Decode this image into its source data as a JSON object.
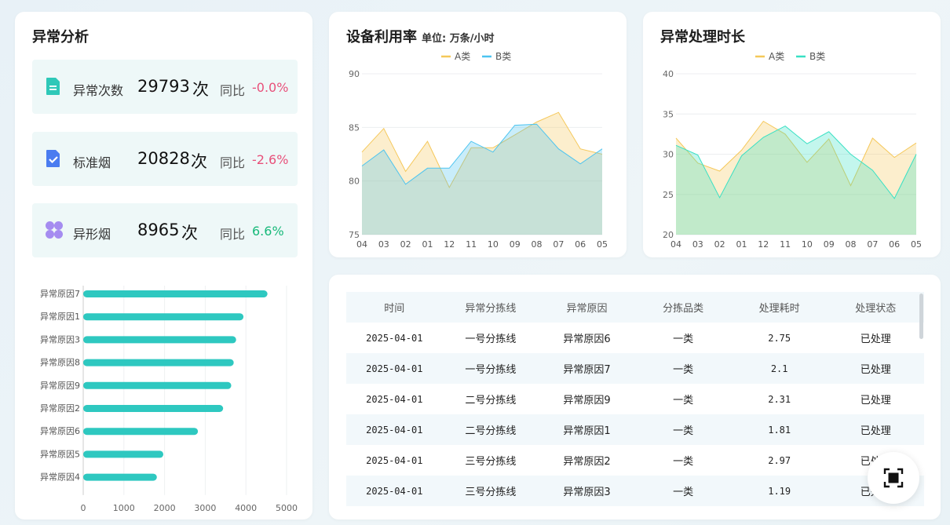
{
  "anomaly": {
    "title": "异常分析",
    "stats": [
      {
        "label": "异常次数",
        "value": "29793",
        "unit": "次",
        "yoy_label": "同比",
        "yoy": "-0.0%",
        "trend": "neg",
        "icon": "document-icon",
        "color": "#2ec8b8"
      },
      {
        "label": "标准烟",
        "value": "20828",
        "unit": "次",
        "yoy_label": "同比",
        "yoy": "-2.6%",
        "trend": "neg",
        "icon": "checklist-icon",
        "color": "#4a7cf0"
      },
      {
        "label": "异形烟",
        "value": "8965",
        "unit": "次",
        "yoy_label": "同比",
        "yoy": "6.6%",
        "trend": "pos",
        "icon": "grid-icon",
        "color": "#a58cf0"
      }
    ]
  },
  "chart_data": [
    {
      "type": "bar",
      "orientation": "horizontal",
      "categories": [
        "异常原因7",
        "异常原因1",
        "异常原因3",
        "异常原因8",
        "异常原因9",
        "异常原因2",
        "异常原因6",
        "异常原因5",
        "异常原因4"
      ],
      "values": [
        4530,
        3940,
        3760,
        3700,
        3640,
        3440,
        2820,
        1970,
        1810
      ],
      "xticks": [
        "0",
        "1000",
        "2000",
        "3000",
        "4000",
        "5000"
      ],
      "xlim": [
        0,
        5000
      ],
      "color": "#2ec8c0"
    },
    {
      "type": "area",
      "title": "设备利用率",
      "unit": "单位: 万条/小时",
      "categories": [
        "04",
        "03",
        "02",
        "01",
        "12",
        "11",
        "10",
        "09",
        "08",
        "07",
        "06",
        "05"
      ],
      "series": [
        {
          "name": "A类",
          "values": [
            82.7,
            84.9,
            80.9,
            83.7,
            79.4,
            83.1,
            83.1,
            84.3,
            85.5,
            86.4,
            83.0,
            82.5
          ],
          "color": "#f5c85a"
        },
        {
          "name": "B类",
          "values": [
            81.4,
            82.9,
            79.7,
            81.2,
            81.2,
            83.7,
            82.7,
            85.2,
            85.3,
            83.0,
            81.6,
            83.0
          ],
          "color": "#4cc4f0"
        }
      ],
      "yticks": [
        "75",
        "80",
        "85",
        "90"
      ],
      "ylim": [
        75,
        90
      ],
      "legend": "top-center"
    },
    {
      "type": "area",
      "title": "异常处理时长",
      "categories": [
        "04",
        "03",
        "02",
        "01",
        "12",
        "11",
        "10",
        "09",
        "08",
        "07",
        "06",
        "05"
      ],
      "series": [
        {
          "name": "A类",
          "values": [
            32.0,
            28.9,
            27.9,
            30.5,
            34.1,
            32.5,
            29.0,
            31.9,
            26.1,
            32.0,
            29.6,
            31.4
          ],
          "color": "#f5c85a"
        },
        {
          "name": "B类",
          "values": [
            31.1,
            29.9,
            24.6,
            29.8,
            32.1,
            33.5,
            31.3,
            32.8,
            30.0,
            28.0,
            24.5,
            30.0
          ],
          "color": "#38e0c4"
        }
      ],
      "yticks": [
        "20",
        "25",
        "30",
        "35",
        "40"
      ],
      "ylim": [
        20,
        40
      ],
      "legend": "top-center"
    }
  ],
  "table": {
    "headers": [
      "时间",
      "异常分拣线",
      "异常原因",
      "分拣品类",
      "处理耗时",
      "处理状态"
    ],
    "rows": [
      [
        "2025-04-01",
        "一号分拣线",
        "异常原因6",
        "一类",
        "2.75",
        "已处理"
      ],
      [
        "2025-04-01",
        "一号分拣线",
        "异常原因7",
        "一类",
        "2.1",
        "已处理"
      ],
      [
        "2025-04-01",
        "二号分拣线",
        "异常原因9",
        "一类",
        "2.31",
        "已处理"
      ],
      [
        "2025-04-01",
        "二号分拣线",
        "异常原因1",
        "一类",
        "1.81",
        "已处理"
      ],
      [
        "2025-04-01",
        "三号分拣线",
        "异常原因2",
        "一类",
        "2.97",
        "已处理"
      ],
      [
        "2025-04-01",
        "三号分拣线",
        "异常原因3",
        "一类",
        "1.19",
        "已处理"
      ]
    ]
  },
  "fullscreen": {
    "icon": "fullscreen-icon"
  }
}
